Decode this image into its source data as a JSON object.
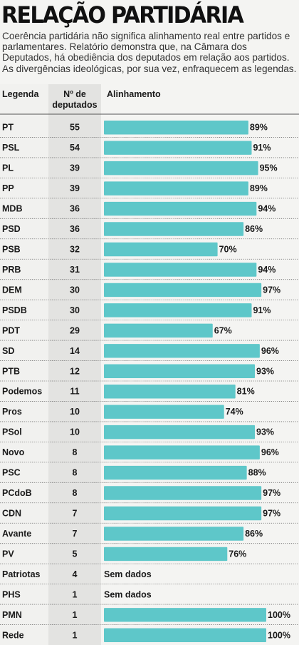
{
  "header": {
    "title": "RELAÇÃO PARTIDÁRIA",
    "subtitle": "Coerência partidária não significa alinhamento real entre partidos e parlamentares. Relatório demonstra que, na Câmara dos Deputados, há obediência dos deputados em relação aos partidos. As divergências ideológicas, por sua vez, enfraquecem as legendas."
  },
  "chart_data": {
    "type": "bar",
    "columns": [
      "Legenda",
      "Nº de deputados",
      "Alinhamento"
    ],
    "xlim": [
      0,
      100
    ],
    "bar_color": "#5ec7c9",
    "rows": [
      {
        "party": "PT",
        "deputies": "55",
        "value": 89,
        "label": "89%"
      },
      {
        "party": "PSL",
        "deputies": "54",
        "value": 91,
        "label": "91%"
      },
      {
        "party": "PL",
        "deputies": "39",
        "value": 95,
        "label": "95%"
      },
      {
        "party": "PP",
        "deputies": "39",
        "value": 89,
        "label": "89%"
      },
      {
        "party": "MDB",
        "deputies": "36",
        "value": 94,
        "label": "94%"
      },
      {
        "party": "PSD",
        "deputies": "36",
        "value": 86,
        "label": "86%"
      },
      {
        "party": "PSB",
        "deputies": "32",
        "value": 70,
        "label": "70%"
      },
      {
        "party": "PRB",
        "deputies": "31",
        "value": 94,
        "label": "94%"
      },
      {
        "party": "DEM",
        "deputies": "30",
        "value": 97,
        "label": "97%"
      },
      {
        "party": "PSDB",
        "deputies": "30",
        "value": 91,
        "label": "91%"
      },
      {
        "party": "PDT",
        "deputies": "29",
        "value": 67,
        "label": "67%"
      },
      {
        "party": "SD",
        "deputies": "14",
        "value": 96,
        "label": "96%"
      },
      {
        "party": "PTB",
        "deputies": "12",
        "value": 93,
        "label": "93%"
      },
      {
        "party": "Podemos",
        "deputies": "11",
        "value": 81,
        "label": "81%"
      },
      {
        "party": "Pros",
        "deputies": "10",
        "value": 74,
        "label": "74%"
      },
      {
        "party": "PSol",
        "deputies": "10",
        "value": 93,
        "label": "93%"
      },
      {
        "party": "Novo",
        "deputies": "8",
        "value": 96,
        "label": "96%"
      },
      {
        "party": "PSC",
        "deputies": "8",
        "value": 88,
        "label": "88%"
      },
      {
        "party": "PCdoB",
        "deputies": "8",
        "value": 97,
        "label": "97%"
      },
      {
        "party": "CDN",
        "deputies": "7",
        "value": 97,
        "label": "97%"
      },
      {
        "party": "Avante",
        "deputies": "7",
        "value": 86,
        "label": "86%"
      },
      {
        "party": "PV",
        "deputies": "5",
        "value": 76,
        "label": "76%"
      },
      {
        "party": "Patriotas",
        "deputies": "4",
        "value": null,
        "label": "Sem dados"
      },
      {
        "party": "PHS",
        "deputies": "1",
        "value": null,
        "label": "Sem dados"
      },
      {
        "party": "PMN",
        "deputies": "1",
        "value": 100,
        "label": "100%"
      },
      {
        "party": "Rede",
        "deputies": "1",
        "value": 100,
        "label": "100%"
      }
    ]
  }
}
